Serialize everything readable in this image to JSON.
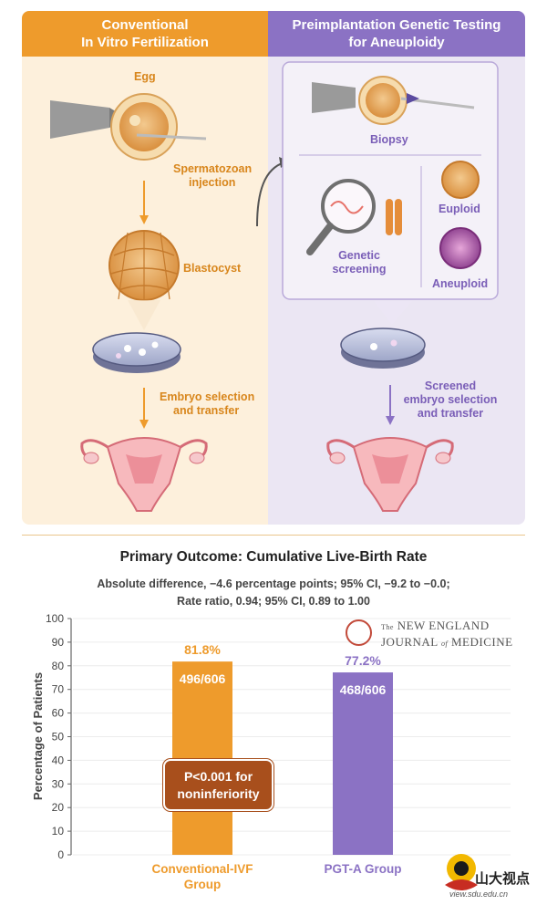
{
  "ivf": {
    "header_line1": "Conventional",
    "header_line2": "In Vitro Fertilization",
    "egg": "Egg",
    "injection_line1": "Spermatozoan",
    "injection_line2": "injection",
    "blastocyst": "Blastocyst",
    "transfer_line1": "Embryo selection",
    "transfer_line2": "and transfer"
  },
  "pgta": {
    "header_line1": "Preimplantation Genetic Testing",
    "header_line2": "for Aneuploidy",
    "biopsy": "Biopsy",
    "screening_line1": "Genetic",
    "screening_line2": "screening",
    "euploid": "Euploid",
    "aneuploid": "Aneuploid",
    "transfer_line1": "Screened",
    "transfer_line2": "embryo selection",
    "transfer_line3": "and transfer"
  },
  "colors": {
    "orange": "#ee9b2c",
    "purple": "#8b72c4",
    "orange_text": "#d8861c",
    "purple_text": "#7a5eb7",
    "pvalue_box": "#a84f1c"
  },
  "journal": {
    "line1_prefix": "The",
    "line1": "NEW ENGLAND",
    "line2_a": "JOURNAL",
    "line2_of": "of",
    "line2_b": "MEDICINE"
  },
  "watermark": {
    "name": "山大视点",
    "url": "view.sdu.edu.cn"
  },
  "chart_data": {
    "type": "bar",
    "title": "Primary Outcome: Cumulative Live-Birth Rate",
    "subtitle_line1": "Absolute difference, −4.6 percentage points; 95% CI, −9.2 to −0.0;",
    "subtitle_line2": "Rate ratio, 0.94; 95% CI, 0.89 to 1.00",
    "ylabel": "Percentage of Patients",
    "ylim": [
      0,
      100
    ],
    "yticks": [
      0,
      10,
      20,
      30,
      40,
      50,
      60,
      70,
      80,
      90,
      100
    ],
    "bars": [
      {
        "label_line1": "Conventional-IVF",
        "label_line2": "Group",
        "value": 81.8,
        "value_label": "81.8%",
        "count_label": "496/606",
        "color": "#ee9b2c"
      },
      {
        "label_line1": "PGT-A Group",
        "label_line2": "",
        "value": 77.2,
        "value_label": "77.2%",
        "count_label": "468/606",
        "color": "#8b72c4"
      }
    ],
    "annotation_line1": "P<0.001 for",
    "annotation_line2": "noninferiority"
  }
}
